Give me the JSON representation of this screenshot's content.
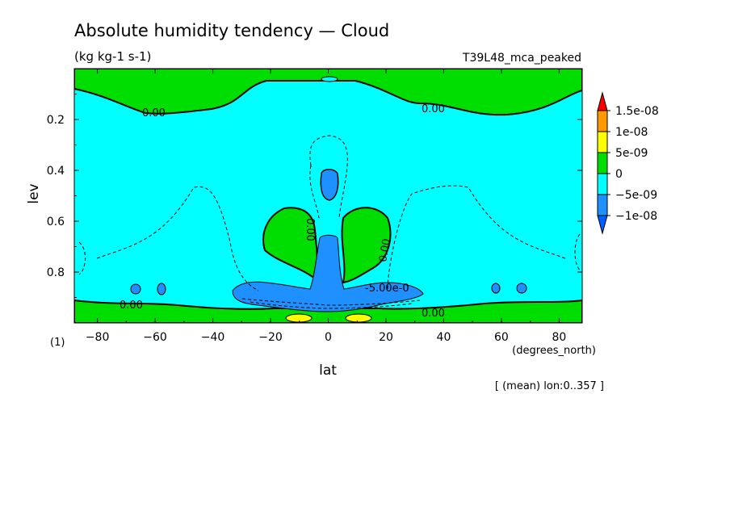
{
  "chart_data": {
    "type": "contour",
    "title": "Absolute humidity tendency — Cloud",
    "units": "(kg kg-1 s-1)",
    "run_label": "T39L48_mca_peaked",
    "xlabel": "lat",
    "xunits": "(degrees_north)",
    "ylabel": "lev",
    "panel_label": "(1)",
    "footnote": "[ (mean) lon:0..357 ]",
    "xlim": [
      -88,
      88
    ],
    "ylim": [
      1.0,
      0.0
    ],
    "x_ticks": [
      -80,
      -60,
      -40,
      -20,
      0,
      20,
      40,
      60,
      80
    ],
    "x_tick_labels": [
      "−80",
      "−60",
      "−40",
      "−20",
      "0",
      "20",
      "40",
      "60",
      "80"
    ],
    "y_ticks": [
      0.2,
      0.4,
      0.6,
      0.8
    ],
    "y_tick_labels": [
      "0.2",
      "0.4",
      "0.6",
      "0.8"
    ],
    "colorbar": {
      "levels": [
        "1.5e-08",
        "1e-08",
        "5e-09",
        "0",
        "−5e-09",
        "−1e-08"
      ],
      "colors": [
        "#ff0000",
        "#ff9900",
        "#ffff00",
        "#00dd00",
        "#00ffff",
        "#1e90ff",
        "#0060ff"
      ]
    },
    "contour_labels": [
      {
        "text": "0.00",
        "lat": -60,
        "lev": 0.18
      },
      {
        "text": "0.00",
        "lat": 37,
        "lev": 0.17
      },
      {
        "text": "0.00",
        "lat": -7,
        "lev": 0.7
      },
      {
        "text": "0.00",
        "lat": 21,
        "lev": 0.75
      },
      {
        "text": "0.00",
        "lat": -67,
        "lev": 0.94
      },
      {
        "text": "0.00",
        "lat": 37,
        "lev": 0.97
      },
      {
        "text": "-5.00e-0",
        "lat": 18,
        "lev": 0.87
      }
    ]
  }
}
